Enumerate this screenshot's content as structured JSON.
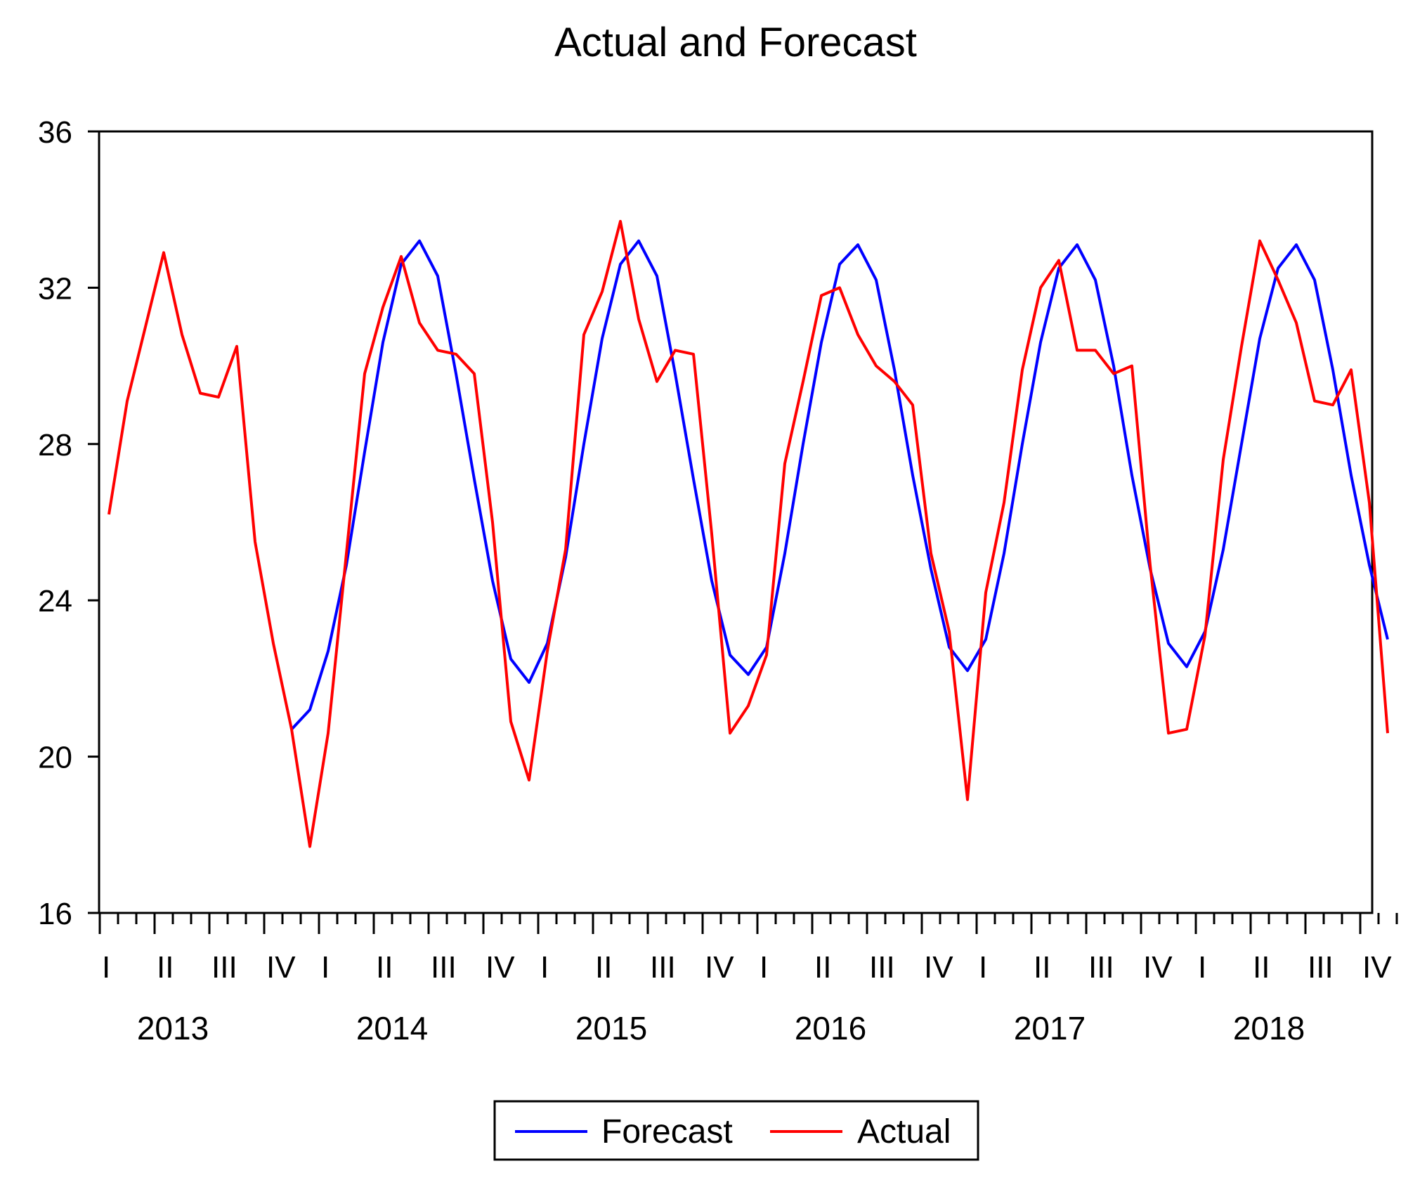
{
  "chart_data": {
    "type": "line",
    "title": "Actual and Forecast",
    "xlabel": "",
    "ylabel": "",
    "ylim": [
      16,
      36
    ],
    "yticks": [
      "16",
      "20",
      "24",
      "28",
      "32",
      "36"
    ],
    "quarter_labels": [
      "I",
      "II",
      "III",
      "IV"
    ],
    "years": [
      "2013",
      "2014",
      "2015",
      "2016",
      "2017",
      "2018"
    ],
    "legend_position": "bottom-center",
    "series": [
      {
        "name": "Forecast",
        "color": "#0000ff",
        "start_index": 10,
        "values": [
          20.7,
          21.2,
          22.7,
          24.9,
          27.8,
          30.6,
          32.6,
          33.2,
          32.3,
          29.8,
          27.1,
          24.5,
          22.5,
          21.9,
          22.9,
          25.1,
          28.0,
          30.7,
          32.6,
          33.2,
          32.3,
          29.8,
          27.1,
          24.5,
          22.6,
          22.1,
          22.8,
          25.2,
          28.0,
          30.6,
          32.6,
          33.1,
          32.2,
          29.9,
          27.2,
          24.8,
          22.8,
          22.2,
          23.0,
          25.2,
          28.0,
          30.6,
          32.5,
          33.1,
          32.2,
          30.0,
          27.2,
          24.8,
          22.9,
          22.3,
          23.2,
          25.3,
          28.0,
          30.7,
          32.5,
          33.1,
          32.2,
          29.9,
          27.2,
          24.9,
          23.0
        ]
      },
      {
        "name": "Actual",
        "color": "#ff0000",
        "start_index": 0,
        "values": [
          26.2,
          29.1,
          31.0,
          32.9,
          30.8,
          29.3,
          29.2,
          30.5,
          25.5,
          22.9,
          20.7,
          17.7,
          20.6,
          25.2,
          29.8,
          31.5,
          32.8,
          31.1,
          30.4,
          30.3,
          29.8,
          26.0,
          20.9,
          19.4,
          22.7,
          25.3,
          30.8,
          31.9,
          33.7,
          31.2,
          29.6,
          30.4,
          30.3,
          25.7,
          20.6,
          21.3,
          22.6,
          27.5,
          29.6,
          31.8,
          32.0,
          30.8,
          30.0,
          29.6,
          29.0,
          25.2,
          23.2,
          18.9,
          24.2,
          26.5,
          29.9,
          32.0,
          32.7,
          30.4,
          30.4,
          29.8,
          30.0,
          24.9,
          20.6,
          20.7,
          23.1,
          27.6,
          30.5,
          33.2,
          32.2,
          31.1,
          29.1,
          29.0,
          29.9,
          26.5,
          20.6
        ]
      }
    ]
  }
}
